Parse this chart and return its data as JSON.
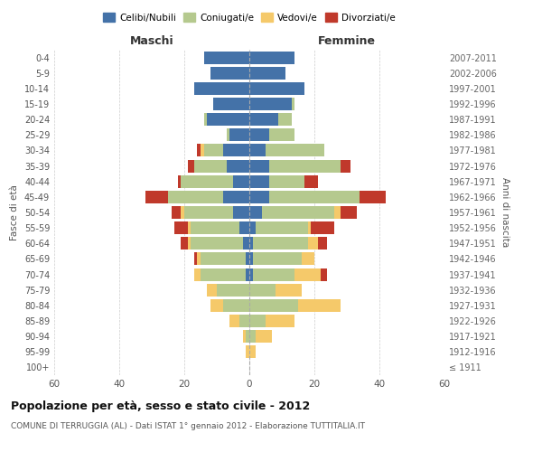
{
  "age_groups": [
    "100+",
    "95-99",
    "90-94",
    "85-89",
    "80-84",
    "75-79",
    "70-74",
    "65-69",
    "60-64",
    "55-59",
    "50-54",
    "45-49",
    "40-44",
    "35-39",
    "30-34",
    "25-29",
    "20-24",
    "15-19",
    "10-14",
    "5-9",
    "0-4"
  ],
  "birth_years": [
    "≤ 1911",
    "1912-1916",
    "1917-1921",
    "1922-1926",
    "1927-1931",
    "1932-1936",
    "1937-1941",
    "1942-1946",
    "1947-1951",
    "1952-1956",
    "1957-1961",
    "1962-1966",
    "1967-1971",
    "1972-1976",
    "1977-1981",
    "1982-1986",
    "1987-1991",
    "1992-1996",
    "1997-2001",
    "2002-2006",
    "2007-2011"
  ],
  "males": {
    "celibi": [
      0,
      0,
      0,
      0,
      0,
      0,
      1,
      1,
      2,
      3,
      5,
      8,
      5,
      7,
      8,
      6,
      13,
      11,
      17,
      12,
      14
    ],
    "coniugati": [
      0,
      0,
      1,
      3,
      8,
      10,
      14,
      14,
      16,
      15,
      15,
      17,
      16,
      10,
      6,
      1,
      1,
      0,
      0,
      0,
      0
    ],
    "vedovi": [
      0,
      1,
      1,
      3,
      4,
      3,
      2,
      1,
      1,
      1,
      1,
      0,
      0,
      0,
      1,
      0,
      0,
      0,
      0,
      0,
      0
    ],
    "divorziati": [
      0,
      0,
      0,
      0,
      0,
      0,
      0,
      1,
      2,
      4,
      3,
      7,
      1,
      2,
      1,
      0,
      0,
      0,
      0,
      0,
      0
    ]
  },
  "females": {
    "nubili": [
      0,
      0,
      0,
      0,
      0,
      0,
      1,
      1,
      1,
      2,
      4,
      6,
      6,
      6,
      5,
      6,
      9,
      13,
      17,
      11,
      14
    ],
    "coniugate": [
      0,
      0,
      2,
      5,
      15,
      8,
      13,
      15,
      17,
      16,
      22,
      28,
      11,
      22,
      18,
      8,
      4,
      1,
      0,
      0,
      0
    ],
    "vedove": [
      0,
      2,
      5,
      9,
      13,
      8,
      8,
      4,
      3,
      1,
      2,
      0,
      0,
      0,
      0,
      0,
      0,
      0,
      0,
      0,
      0
    ],
    "divorziate": [
      0,
      0,
      0,
      0,
      0,
      0,
      2,
      0,
      3,
      7,
      5,
      8,
      4,
      3,
      0,
      0,
      0,
      0,
      0,
      0,
      0
    ]
  },
  "color_celibi": "#4472a8",
  "color_coniugati": "#b5c98e",
  "color_vedovi": "#f5c96a",
  "color_divorziati": "#c0392b",
  "xlabel_left": "Maschi",
  "xlabel_right": "Femmine",
  "ylabel_left": "Fasce di età",
  "ylabel_right": "Anni di nascita",
  "title": "Popolazione per età, sesso e stato civile - 2012",
  "subtitle": "COMUNE DI TERRUGGIA (AL) - Dati ISTAT 1° gennaio 2012 - Elaborazione TUTTITALIA.IT",
  "legend_labels": [
    "Celibi/Nubili",
    "Coniugati/e",
    "Vedovi/e",
    "Divorziati/e"
  ],
  "xlim": 60,
  "background_color": "#ffffff",
  "grid_color": "#cccccc"
}
